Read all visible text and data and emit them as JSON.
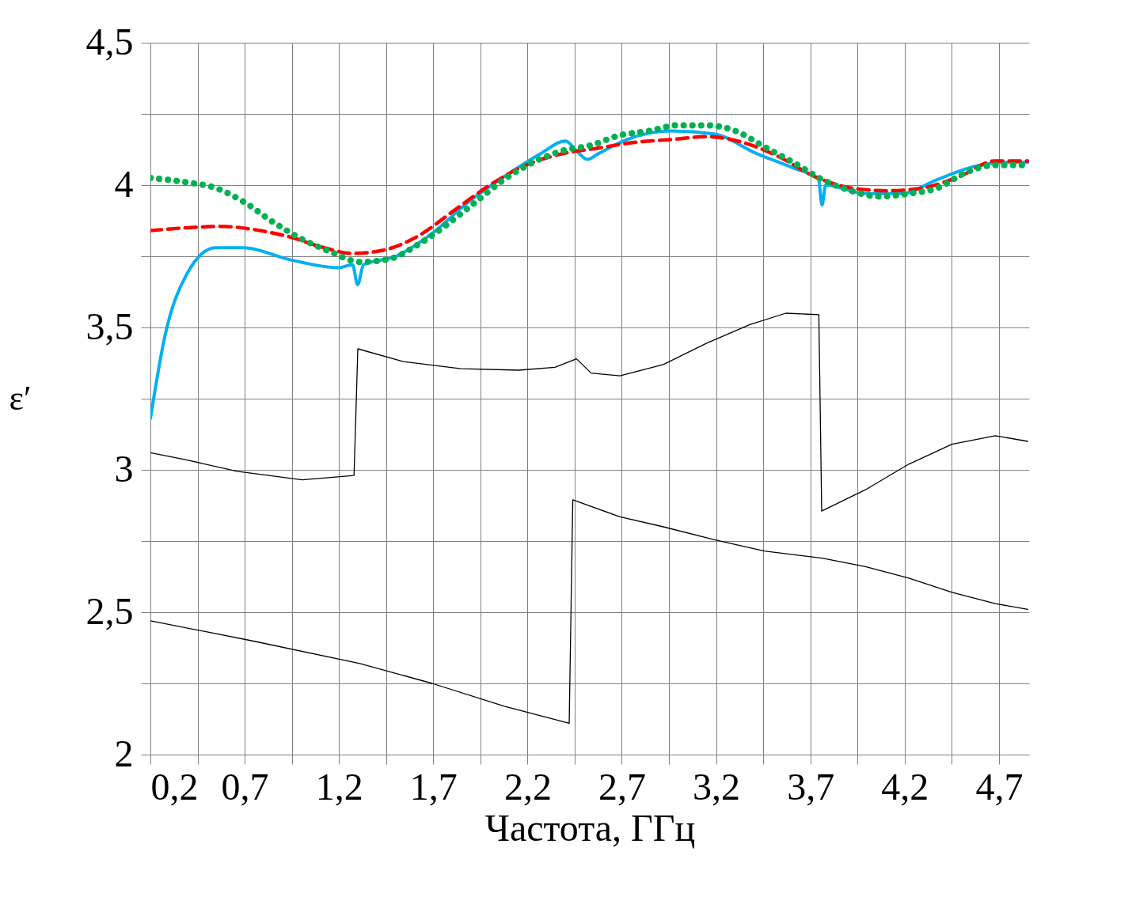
{
  "chart_data": {
    "type": "line",
    "xlabel": "Частота, ГГц",
    "ylabel": "ε′",
    "xlim": [
      0.2,
      4.86
    ],
    "ylim": [
      2,
      4.5
    ],
    "xticks": [
      {
        "value": 0.2,
        "label": "0,2"
      },
      {
        "value": 0.45,
        "label": null
      },
      {
        "value": 0.7,
        "label": "0,7"
      },
      {
        "value": 0.95,
        "label": null
      },
      {
        "value": 1.2,
        "label": "1,2"
      },
      {
        "value": 1.45,
        "label": null
      },
      {
        "value": 1.7,
        "label": "1,7"
      },
      {
        "value": 1.95,
        "label": null
      },
      {
        "value": 2.2,
        "label": "2,2"
      },
      {
        "value": 2.45,
        "label": null
      },
      {
        "value": 2.7,
        "label": "2,7"
      },
      {
        "value": 2.95,
        "label": null
      },
      {
        "value": 3.2,
        "label": "3,2"
      },
      {
        "value": 3.45,
        "label": null
      },
      {
        "value": 3.7,
        "label": "3,7"
      },
      {
        "value": 3.95,
        "label": null
      },
      {
        "value": 4.2,
        "label": "4,2"
      },
      {
        "value": 4.45,
        "label": null
      },
      {
        "value": 4.7,
        "label": "4,7"
      }
    ],
    "yticks": [
      2,
      {
        "value": 2.25,
        "label": null
      },
      {
        "value": 2.5,
        "label": "2,5"
      },
      {
        "value": 2.75,
        "label": null
      },
      3,
      {
        "value": 3.25,
        "label": null
      },
      {
        "value": 3.5,
        "label": "3,5"
      },
      {
        "value": 3.75,
        "label": null
      },
      4,
      {
        "value": 4.25,
        "label": null
      },
      {
        "value": 4.5,
        "label": "4,5"
      }
    ],
    "grid": true,
    "marker": "none",
    "series": [
      {
        "color": "#000000",
        "line_style": "solid",
        "x": [
          0.2,
          0.391,
          0.66,
          1.005,
          1.28,
          1.3,
          1.541,
          1.847,
          2.153,
          2.345,
          2.46,
          2.537,
          2.69,
          2.92,
          3.15,
          3.379,
          3.57,
          3.745,
          3.76,
          3.992,
          4.222,
          4.451,
          4.681,
          4.853
        ],
        "values": [
          3.06,
          3.035,
          2.995,
          2.965,
          2.98,
          3.425,
          3.38,
          3.355,
          3.35,
          3.36,
          3.39,
          3.34,
          3.33,
          3.37,
          3.445,
          3.51,
          3.55,
          3.545,
          2.855,
          2.93,
          3.02,
          3.09,
          3.12,
          3.1
        ]
      },
      {
        "color": "#000000",
        "line_style": "solid",
        "x": [
          0.2,
          0.736,
          1.311,
          1.694,
          2.077,
          2.421,
          2.44,
          2.69,
          2.92,
          3.187,
          3.455,
          3.762,
          3.992,
          4.222,
          4.451,
          4.681,
          4.853
        ],
        "values": [
          2.47,
          2.4,
          2.32,
          2.25,
          2.17,
          2.11,
          2.895,
          2.835,
          2.8,
          2.755,
          2.715,
          2.69,
          2.66,
          2.62,
          2.57,
          2.53,
          2.51
        ]
      },
      {
        "color": "#00b0f0",
        "line_style": "solid",
        "x": [
          0.2,
          0.277,
          0.391,
          0.545,
          0.698,
          0.928,
          1.196,
          1.272,
          1.299,
          1.33,
          1.502,
          1.694,
          1.885,
          2.077,
          2.268,
          2.402,
          2.46,
          2.517,
          2.575,
          2.728,
          2.958,
          3.187,
          3.417,
          3.609,
          3.743,
          3.762,
          3.781,
          3.992,
          4.183,
          4.375,
          4.566,
          4.758,
          4.853
        ],
        "values": [
          3.18,
          3.47,
          3.685,
          3.78,
          3.78,
          3.74,
          3.71,
          3.72,
          3.65,
          3.72,
          3.75,
          3.83,
          3.94,
          4.03,
          4.11,
          4.155,
          4.12,
          4.09,
          4.11,
          4.16,
          4.19,
          4.18,
          4.11,
          4.06,
          4.02,
          3.93,
          4.0,
          3.97,
          3.97,
          4.02,
          4.065,
          4.08,
          4.08
        ]
      },
      {
        "color": "#ff0000",
        "line_style": "dashed",
        "x": [
          0.2,
          0.391,
          0.583,
          0.736,
          0.928,
          1.12,
          1.272,
          1.426,
          1.617,
          1.809,
          2.0,
          2.192,
          2.383,
          2.575,
          2.766,
          2.958,
          3.15,
          3.341,
          3.532,
          3.724,
          3.915,
          4.107,
          4.298,
          4.49,
          4.681,
          4.853
        ],
        "values": [
          3.84,
          3.85,
          3.855,
          3.845,
          3.82,
          3.78,
          3.76,
          3.77,
          3.82,
          3.91,
          4.0,
          4.07,
          4.11,
          4.13,
          4.15,
          4.16,
          4.17,
          4.15,
          4.1,
          4.03,
          3.99,
          3.98,
          3.99,
          4.03,
          4.085,
          4.085
        ]
      },
      {
        "color": "#00b050",
        "line_style": "dotted",
        "x": [
          0.2,
          0.391,
          0.545,
          0.698,
          0.851,
          1.005,
          1.158,
          1.311,
          1.464,
          1.617,
          1.77,
          1.924,
          2.077,
          2.23,
          2.383,
          2.537,
          2.69,
          2.843,
          2.996,
          3.15,
          3.303,
          3.455,
          3.609,
          3.762,
          3.915,
          4.068,
          4.222,
          4.375,
          4.528,
          4.681,
          4.853
        ],
        "values": [
          4.025,
          4.01,
          3.99,
          3.94,
          3.87,
          3.81,
          3.765,
          3.73,
          3.74,
          3.79,
          3.86,
          3.94,
          4.02,
          4.08,
          4.12,
          4.14,
          4.175,
          4.19,
          4.21,
          4.21,
          4.19,
          4.135,
          4.08,
          4.02,
          3.98,
          3.96,
          3.97,
          3.99,
          4.045,
          4.07,
          4.07
        ]
      }
    ]
  }
}
